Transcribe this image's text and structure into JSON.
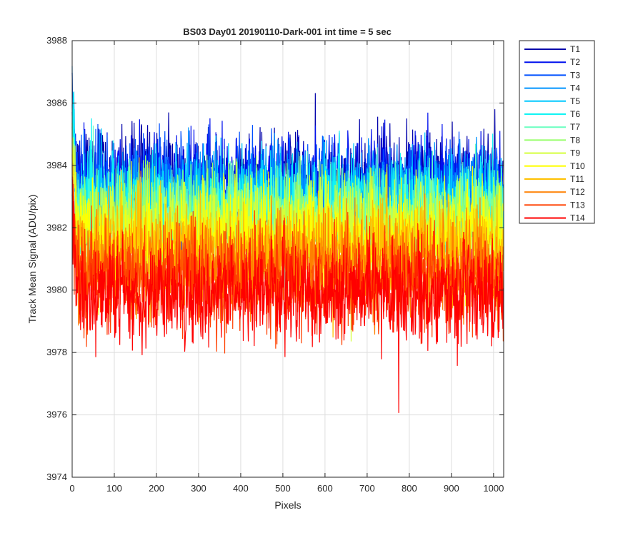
{
  "chart_data": {
    "type": "line",
    "title": "BS03 Day01 20190110-Dark-001 int time = 5 sec",
    "xlabel": "Pixels",
    "ylabel": "Track Mean Signal (ADU/pix)",
    "xlim": [
      0,
      1024
    ],
    "ylim": [
      3974,
      3988
    ],
    "xticks": [
      0,
      100,
      200,
      300,
      400,
      500,
      600,
      700,
      800,
      900,
      1000
    ],
    "yticks": [
      3974,
      3976,
      3978,
      3980,
      3982,
      3984,
      3986,
      3988
    ],
    "grid": true,
    "legend_location": "outside-right-top",
    "n_points_per_series": 1024,
    "series": [
      {
        "name": "T1",
        "color": "#0000aa",
        "mean": 3983.6,
        "spread": 0.95
      },
      {
        "name": "T2",
        "color": "#0010ee",
        "mean": 3983.4,
        "spread": 0.95
      },
      {
        "name": "T3",
        "color": "#0050ff",
        "mean": 3983.2,
        "spread": 0.95
      },
      {
        "name": "T4",
        "color": "#0094ff",
        "mean": 3983.0,
        "spread": 0.95
      },
      {
        "name": "T5",
        "color": "#00c8ff",
        "mean": 3982.8,
        "spread": 0.95
      },
      {
        "name": "T6",
        "color": "#10f4f4",
        "mean": 3982.6,
        "spread": 0.95
      },
      {
        "name": "T7",
        "color": "#6affc0",
        "mean": 3982.4,
        "spread": 0.95
      },
      {
        "name": "T8",
        "color": "#96ff6a",
        "mean": 3982.2,
        "spread": 0.95
      },
      {
        "name": "T9",
        "color": "#d4ff3a",
        "mean": 3982.0,
        "spread": 0.95
      },
      {
        "name": "T10",
        "color": "#ffff00",
        "mean": 3981.6,
        "spread": 1.0
      },
      {
        "name": "T11",
        "color": "#ffc000",
        "mean": 3981.2,
        "spread": 1.0
      },
      {
        "name": "T12",
        "color": "#ff8000",
        "mean": 3980.8,
        "spread": 1.0
      },
      {
        "name": "T13",
        "color": "#ff4000",
        "mean": 3980.3,
        "spread": 1.0
      },
      {
        "name": "T14",
        "color": "#ff0000",
        "mean": 3979.9,
        "spread": 1.0
      }
    ]
  }
}
